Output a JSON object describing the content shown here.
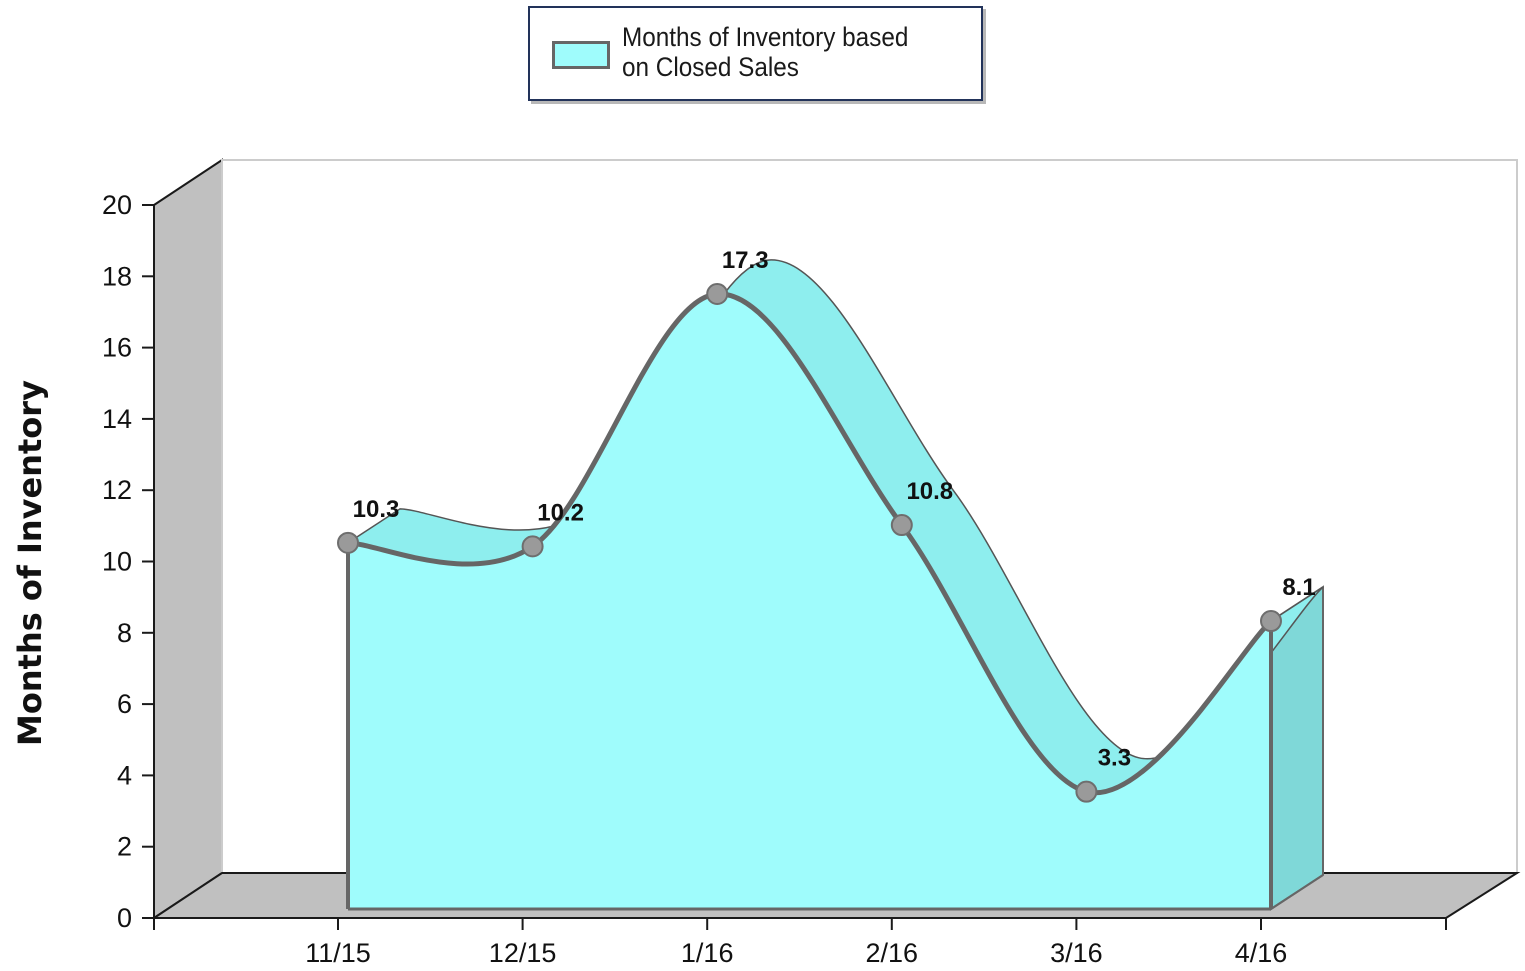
{
  "chart_data": {
    "type": "area",
    "categories": [
      "11/15",
      "12/15",
      "1/16",
      "2/16",
      "3/16",
      "4/16"
    ],
    "series": [
      {
        "name": "Months of Inventory based on Closed Sales",
        "values": [
          10.3,
          10.2,
          17.3,
          10.8,
          3.3,
          8.1
        ],
        "data_labels": [
          "10.3",
          "10.2",
          "17.3",
          "10.8",
          "3.3",
          "8.1"
        ]
      }
    ],
    "ylabel": "Months of Inventory",
    "xlabel": "",
    "ylim": [
      0,
      20
    ],
    "yticks": [
      "0",
      "2",
      "4",
      "6",
      "8",
      "10",
      "12",
      "14",
      "16",
      "18",
      "20"
    ],
    "legend": "top-center",
    "grid": false,
    "style": "3d",
    "colors": {
      "area_fill": "#9ffcfc",
      "area_top": "#8eeeee",
      "area_side": "#7fd8d8",
      "line": "#666666",
      "marker": "#9a9a9a",
      "wall": "#c0c0c0",
      "floor": "#c0c0c0"
    }
  }
}
